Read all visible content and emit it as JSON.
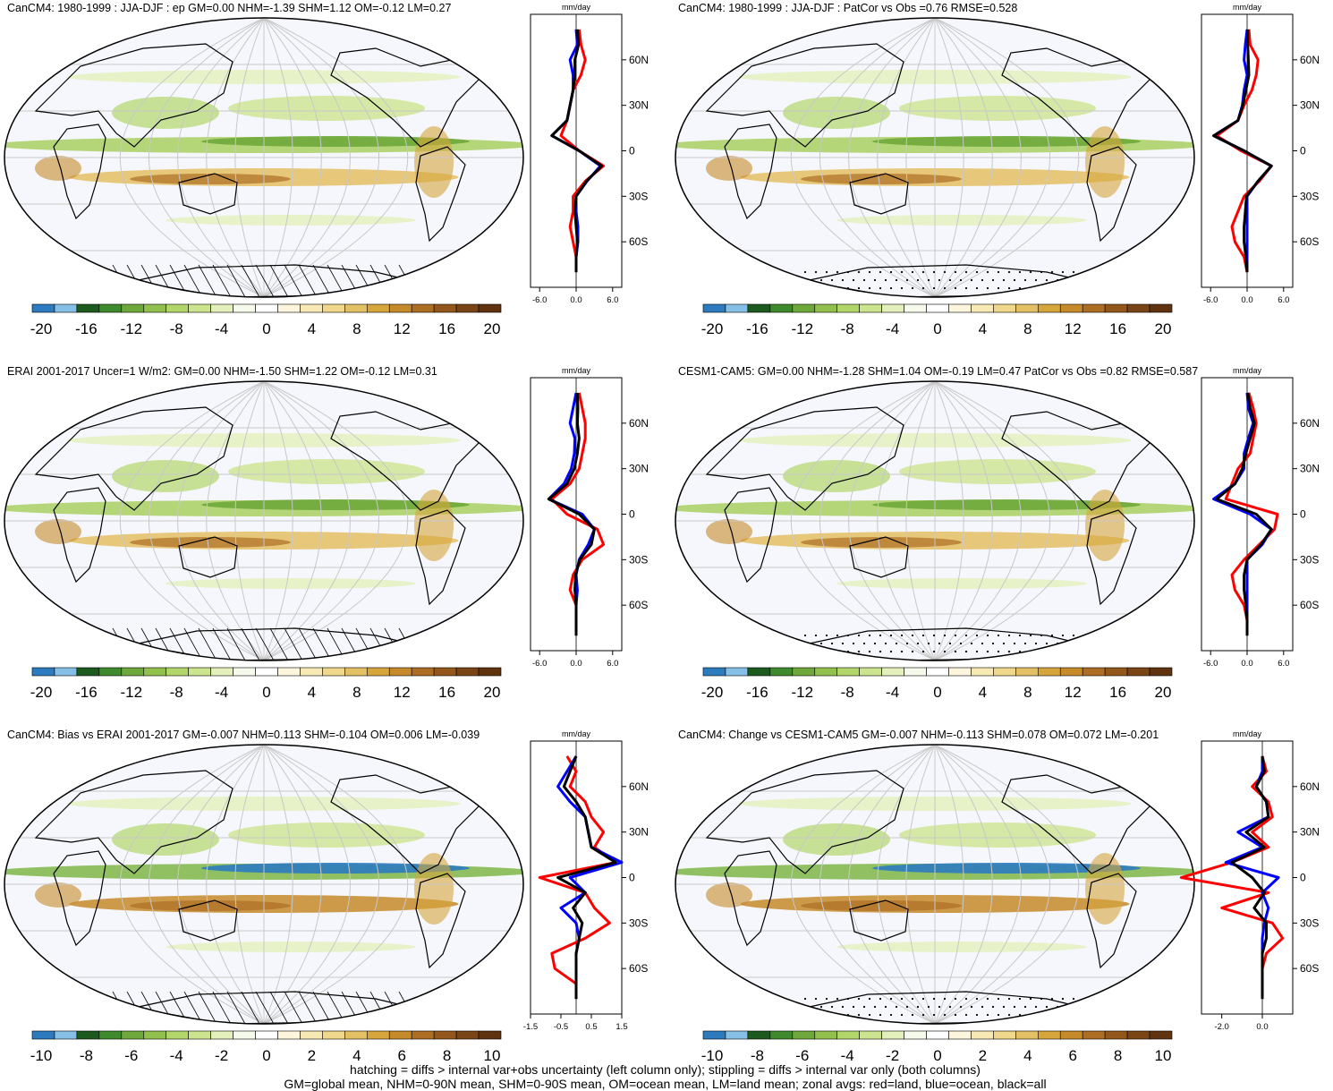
{
  "panels": [
    {
      "title": "CanCM4: 1980-1999 : JJA-DJF : ep GM=0.00 NHM=-1.39 SHM=1.12 OM=-0.12 LM=0.27",
      "profile_units": "mm/day",
      "profile_xticks": [
        "-6.0",
        "0.0",
        "6.0"
      ],
      "lat_ticks": [
        "60N",
        "30N",
        "0",
        "30S",
        "60S"
      ],
      "colorbar_labels": [
        "-20",
        "-16",
        "-12",
        "-8",
        "-4",
        "0",
        "4",
        "8",
        "12",
        "16",
        "20"
      ],
      "marking": "hatching"
    },
    {
      "title": "CanCM4: 1980-1999 : JJA-DJF : PatCor vs Obs =0.76 RMSE=0.528",
      "profile_units": "mm/day",
      "profile_xticks": [
        "-6.0",
        "0.0",
        "6.0"
      ],
      "lat_ticks": [
        "60N",
        "30N",
        "0",
        "30S",
        "60S"
      ],
      "colorbar_labels": [
        "-20",
        "-16",
        "-12",
        "-8",
        "-4",
        "0",
        "4",
        "8",
        "12",
        "16",
        "20"
      ],
      "marking": "stippling"
    },
    {
      "title": "ERAI 2001-2017 Uncer=1 W/m2: GM=0.00 NHM=-1.50 SHM=1.22 OM=-0.12 LM=0.31",
      "profile_units": "mm/day",
      "profile_xticks": [
        "-6.0",
        "0.0",
        "6.0"
      ],
      "lat_ticks": [
        "60N",
        "30N",
        "0",
        "30S",
        "60S"
      ],
      "colorbar_labels": [
        "-20",
        "-16",
        "-12",
        "-8",
        "-4",
        "0",
        "4",
        "8",
        "12",
        "16",
        "20"
      ],
      "marking": "hatching"
    },
    {
      "title": "CESM1-CAM5: GM=0.00 NHM=-1.28 SHM=1.04 OM=-0.19 LM=0.47 PatCor vs Obs =0.82 RMSE=0.587",
      "profile_units": "mm/day",
      "profile_xticks": [
        "-6.0",
        "0.0",
        "6.0"
      ],
      "lat_ticks": [
        "60N",
        "30N",
        "0",
        "30S",
        "60S"
      ],
      "colorbar_labels": [
        "-20",
        "-16",
        "-12",
        "-8",
        "-4",
        "0",
        "4",
        "8",
        "12",
        "16",
        "20"
      ],
      "marking": "stippling"
    },
    {
      "title": "CanCM4: Bias vs ERAI 2001-2017 GM=-0.007 NHM=0.113 SHM=-0.104 OM=0.006 LM=-0.039",
      "profile_units": "mm/day",
      "profile_xticks": [
        "-1.5",
        "-0.5",
        "0.5",
        "1.5"
      ],
      "lat_ticks": [
        "60N",
        "30N",
        "0",
        "30S",
        "60S"
      ],
      "colorbar_labels": [
        "-10",
        "-8",
        "-6",
        "-4",
        "-2",
        "0",
        "2",
        "4",
        "6",
        "8",
        "10"
      ],
      "marking": "hatching"
    },
    {
      "title": "CanCM4: Change vs CESM1-CAM5 GM=-0.007 NHM=-0.113 SHM=0.078 OM=0.072 LM=-0.201",
      "profile_units": "mm/day",
      "profile_xticks": [
        "-2.0",
        "0.0"
      ],
      "lat_ticks": [
        "60N",
        "30N",
        "0",
        "30S",
        "60S"
      ],
      "colorbar_labels": [
        "-10",
        "-8",
        "-6",
        "-4",
        "-2",
        "0",
        "2",
        "4",
        "6",
        "8",
        "10"
      ],
      "marking": "stippling"
    }
  ],
  "colorbar_colors": [
    "#2c7bbf",
    "#86bfe6",
    "#1d5a1d",
    "#3f8a2c",
    "#6ea83a",
    "#92c04c",
    "#b2d66a",
    "#cde48f",
    "#e3f0bb",
    "#f6faea",
    "#ffffff",
    "#fdf6dc",
    "#f7e9b3",
    "#efd78b",
    "#e4c064",
    "#d6a53c",
    "#c68a2a",
    "#ad6e23",
    "#93571b",
    "#7a4415",
    "#5f3310"
  ],
  "series_colors": {
    "land": "#ff0000",
    "ocean": "#0000ff",
    "all": "#000000"
  },
  "footer": [
    "hatching = diffs > internal var+obs uncertainty (left column only); stippling = diffs > internal var only (both columns)",
    "GM=global mean, NHM=0-90N mean, SHM=0-90S mean, OM=ocean mean, LM=land mean; zonal avgs: red=land, blue=ocean, black=all"
  ],
  "chart_data": [
    {
      "type": "heatmap",
      "title": "CanCM4: 1980-1999 : JJA-DJF : ep GM=0.00 NHM=-1.39 SHM=1.12 OM=-0.12 LM=0.27",
      "units": "mm/day",
      "clim": [
        -20,
        20
      ],
      "zonal_profile_latitudes": [
        80,
        70,
        60,
        50,
        40,
        30,
        20,
        10,
        0,
        -10,
        -20,
        -30,
        -40,
        -50,
        -60,
        -70,
        -80
      ],
      "series": [
        {
          "name": "land",
          "values": [
            0.5,
            0.8,
            1.5,
            0.8,
            -0.5,
            -1.0,
            -1.5,
            -2.5,
            0.5,
            4.5,
            1.5,
            -0.5,
            -0.5,
            -1.0,
            -0.5,
            0.0,
            0.0
          ]
        },
        {
          "name": "ocean",
          "values": [
            0.0,
            0.2,
            -1.0,
            -0.5,
            -0.5,
            -1.0,
            -1.5,
            -4.0,
            0.5,
            4.0,
            1.8,
            0.0,
            0.0,
            0.3,
            0.3,
            0.0,
            0.0
          ]
        },
        {
          "name": "all",
          "values": [
            0.2,
            0.4,
            -0.2,
            -0.2,
            -0.5,
            -1.0,
            -1.5,
            -4.0,
            0.5,
            4.2,
            1.7,
            0.0,
            -0.2,
            0.0,
            0.2,
            0.0,
            0.0
          ]
        }
      ]
    },
    {
      "type": "heatmap",
      "title": "CanCM4: 1980-1999 : JJA-DJF : PatCor vs Obs =0.76 RMSE=0.528",
      "units": "mm/day",
      "clim": [
        -20,
        20
      ],
      "zonal_profile_latitudes": [
        80,
        70,
        60,
        50,
        40,
        30,
        20,
        10,
        0,
        -10,
        -20,
        -30,
        -40,
        -50,
        -60,
        -70,
        -80
      ],
      "series": [
        {
          "name": "land",
          "values": [
            0.3,
            0.5,
            1.8,
            1.5,
            0.8,
            -0.5,
            -1.5,
            -5.0,
            -1.0,
            4.0,
            2.0,
            -0.5,
            -1.5,
            -2.5,
            -2.0,
            -0.5,
            0.0
          ]
        },
        {
          "name": "ocean",
          "values": [
            0.0,
            -0.3,
            -0.5,
            0.0,
            -0.5,
            -0.8,
            -1.5,
            -5.5,
            -0.5,
            4.0,
            1.8,
            0.0,
            0.0,
            0.0,
            0.0,
            0.0,
            0.0
          ]
        },
        {
          "name": "all",
          "values": [
            0.1,
            0.1,
            0.2,
            0.3,
            -0.2,
            -0.7,
            -1.5,
            -5.5,
            -0.5,
            4.0,
            1.8,
            -0.1,
            -0.3,
            -0.5,
            -0.5,
            -0.2,
            0.0
          ]
        }
      ]
    },
    {
      "type": "heatmap",
      "title": "ERAI 2001-2017 Uncer=1 W/m2: GM=0.00 NHM=-1.50 SHM=1.22 OM=-0.12 LM=0.31",
      "units": "mm/day",
      "clim": [
        -20,
        20
      ],
      "zonal_profile_latitudes": [
        80,
        70,
        60,
        50,
        40,
        30,
        20,
        10,
        0,
        -10,
        -20,
        -30,
        -40,
        -50,
        -60,
        -70,
        -80
      ],
      "series": [
        {
          "name": "land",
          "values": [
            0.5,
            1.0,
            1.5,
            1.5,
            1.0,
            0.5,
            -1.0,
            -4.0,
            -1.5,
            3.5,
            4.5,
            1.0,
            -0.5,
            -1.0,
            0.0,
            0.0,
            0.0
          ]
        },
        {
          "name": "ocean",
          "values": [
            0.0,
            -0.5,
            -1.0,
            -0.2,
            -0.3,
            -0.8,
            -2.0,
            -4.5,
            1.0,
            3.0,
            2.0,
            0.5,
            0.0,
            0.2,
            0.0,
            0.0,
            0.0
          ]
        },
        {
          "name": "all",
          "values": [
            0.2,
            0.3,
            0.2,
            0.5,
            0.2,
            -0.3,
            -1.5,
            -4.5,
            0.5,
            3.0,
            2.5,
            0.6,
            -0.1,
            -0.2,
            0.0,
            0.0,
            0.0
          ]
        }
      ]
    },
    {
      "type": "heatmap",
      "title": "CESM1-CAM5: GM=0.00 NHM=-1.28 SHM=1.04 OM=-0.19 LM=0.47 PatCor vs Obs =0.82 RMSE=0.587",
      "units": "mm/day",
      "clim": [
        -20,
        20
      ],
      "zonal_profile_latitudes": [
        80,
        70,
        60,
        50,
        40,
        30,
        20,
        10,
        0,
        -10,
        -20,
        -30,
        -40,
        -50,
        -60,
        -70,
        -80
      ],
      "series": [
        {
          "name": "land",
          "values": [
            0.3,
            1.0,
            1.5,
            1.0,
            0.5,
            -1.5,
            -2.5,
            -3.5,
            5.0,
            4.5,
            2.0,
            -0.5,
            -2.5,
            -2.0,
            -0.5,
            0.0,
            0.0
          ]
        },
        {
          "name": "ocean",
          "values": [
            0.0,
            0.2,
            1.0,
            0.2,
            -0.5,
            -0.5,
            -2.0,
            -5.5,
            0.5,
            4.0,
            2.5,
            0.0,
            0.0,
            0.0,
            0.0,
            0.0,
            0.0
          ]
        },
        {
          "name": "all",
          "values": [
            0.1,
            0.5,
            1.2,
            0.5,
            -0.2,
            -0.8,
            -2.0,
            -5.0,
            1.5,
            4.0,
            2.3,
            0.0,
            -0.5,
            -0.5,
            -0.2,
            0.0,
            0.0
          ]
        }
      ]
    },
    {
      "type": "heatmap",
      "title": "CanCM4: Bias vs ERAI 2001-2017 GM=-0.007 NHM=0.113 SHM=-0.104 OM=0.006 LM=-0.039",
      "units": "mm/day",
      "clim": [
        -10,
        10
      ],
      "zonal_profile_latitudes": [
        80,
        70,
        60,
        50,
        40,
        30,
        20,
        10,
        0,
        -10,
        -20,
        -30,
        -40,
        -50,
        -60,
        -70,
        -80
      ],
      "series": [
        {
          "name": "land",
          "values": [
            -0.3,
            0.0,
            -0.2,
            0.3,
            0.5,
            0.9,
            0.6,
            1.3,
            -1.2,
            0.3,
            0.6,
            1.1,
            0.3,
            -0.8,
            -0.7,
            0.0,
            0.0
          ]
        },
        {
          "name": "ocean",
          "values": [
            0.0,
            -0.3,
            -0.6,
            -0.2,
            0.3,
            0.4,
            0.5,
            1.5,
            -0.2,
            0.3,
            -0.5,
            0.0,
            0.1,
            0.0,
            0.0,
            0.0,
            0.0
          ]
        },
        {
          "name": "all",
          "values": [
            0.0,
            -0.2,
            -0.4,
            0.0,
            0.3,
            0.4,
            0.5,
            1.3,
            -0.6,
            0.3,
            -0.1,
            0.2,
            0.1,
            0.0,
            0.0,
            0.0,
            0.0
          ]
        }
      ]
    },
    {
      "type": "heatmap",
      "title": "CanCM4: Change vs CESM1-CAM5 GM=-0.007 NHM=-0.113 SHM=0.078 OM=0.072 LM=-0.201",
      "units": "mm/day",
      "clim": [
        -10,
        10
      ],
      "zonal_profile_latitudes": [
        80,
        70,
        60,
        50,
        40,
        30,
        20,
        10,
        0,
        -10,
        -20,
        -30,
        -40,
        -50,
        -60,
        -70,
        -80
      ],
      "series": [
        {
          "name": "land",
          "values": [
            0.0,
            0.2,
            -0.5,
            0.3,
            0.5,
            -0.5,
            0.3,
            -1.5,
            -4.0,
            0.3,
            -2.0,
            0.5,
            1.0,
            0.2,
            0.0,
            0.0,
            0.0
          ]
        },
        {
          "name": "ocean",
          "values": [
            0.0,
            0.0,
            -0.3,
            0.2,
            0.3,
            -1.2,
            0.0,
            -1.8,
            0.8,
            0.0,
            0.3,
            0.1,
            0.0,
            0.0,
            0.0,
            0.0,
            0.0
          ]
        },
        {
          "name": "all",
          "values": [
            0.0,
            0.1,
            -0.3,
            0.2,
            0.3,
            -0.8,
            0.1,
            -1.5,
            -0.5,
            0.1,
            -0.4,
            0.2,
            0.2,
            0.0,
            0.0,
            0.0,
            0.0
          ]
        }
      ]
    }
  ]
}
